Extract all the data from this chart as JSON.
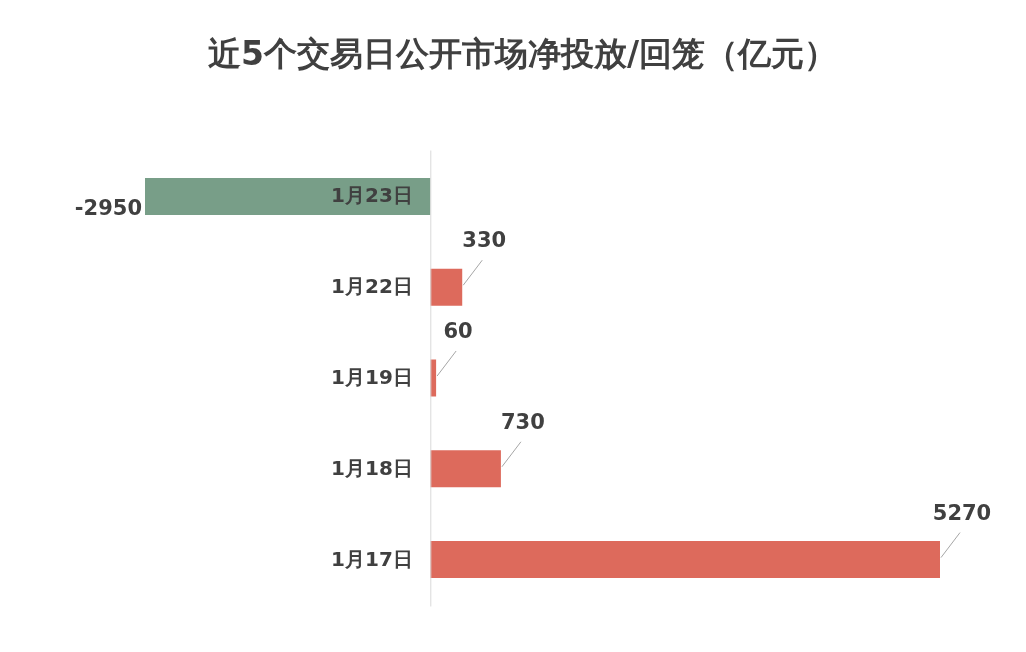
{
  "chart_data": {
    "type": "bar",
    "orientation": "horizontal",
    "title": "近5个交易日公开市场净投放/回笼（亿元）",
    "categories": [
      "1月23日",
      "1月22日",
      "1月19日",
      "1月18日",
      "1月17日"
    ],
    "values": [
      -2950,
      330,
      60,
      730,
      5270
    ],
    "colors": [
      "#789e88",
      "#dd6a5c",
      "#dd6a5c",
      "#dd6a5c",
      "#dd6a5c"
    ],
    "data_labels": true,
    "grid": false,
    "tick_labels": "y"
  }
}
